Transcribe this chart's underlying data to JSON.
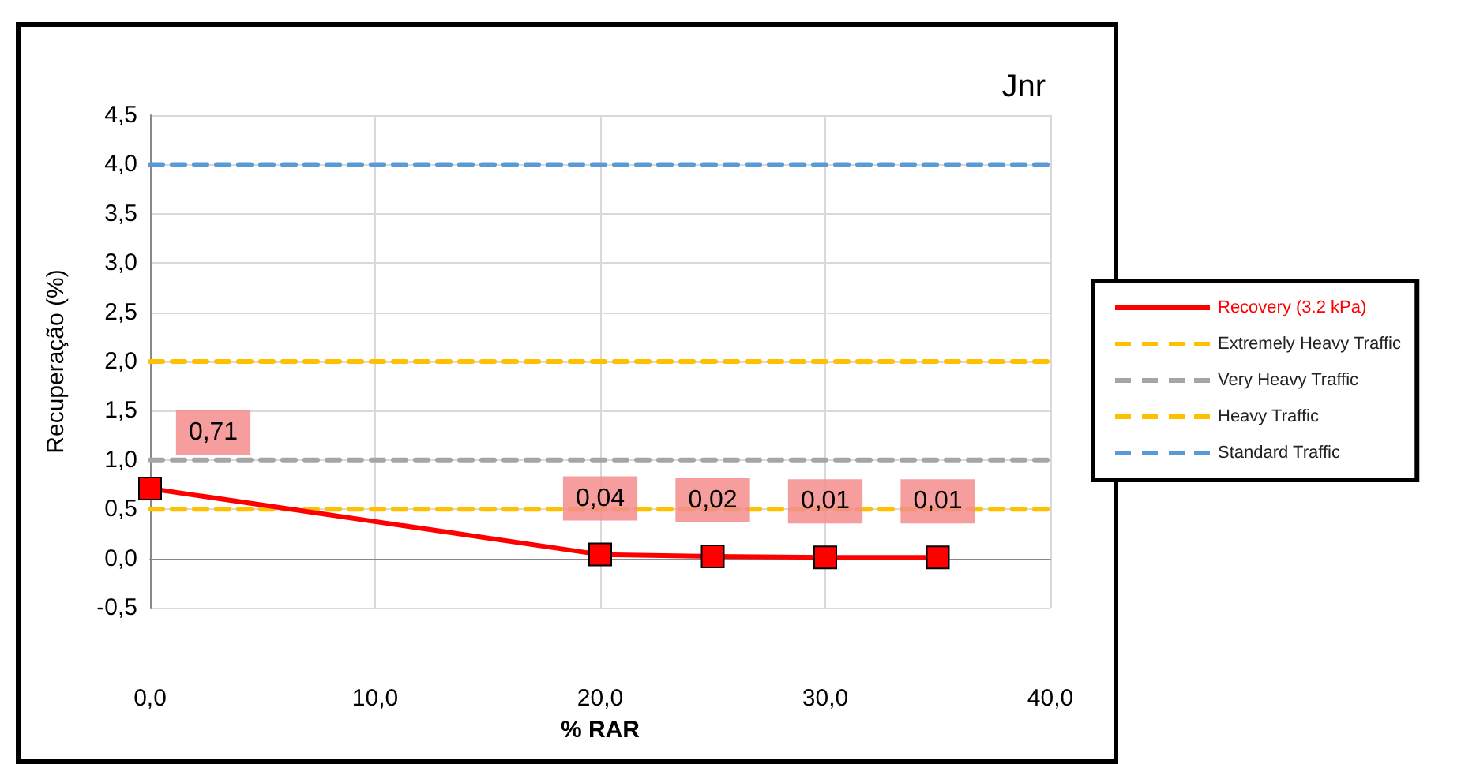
{
  "chart_data": {
    "type": "line",
    "title": "Jnr",
    "xlabel": "% RAR",
    "ylabel": "Recuperação (%)",
    "xlim": [
      0,
      40
    ],
    "xticks": [
      {
        "value": 0,
        "label": "0,0"
      },
      {
        "value": 10,
        "label": "10,0"
      },
      {
        "value": 20,
        "label": "20,0"
      },
      {
        "value": 30,
        "label": "30,0"
      },
      {
        "value": 40,
        "label": "40,0"
      }
    ],
    "ylim": [
      -0.5,
      4.5
    ],
    "yticks": [
      {
        "value": -0.5,
        "label": "-0,5"
      },
      {
        "value": 0,
        "label": "0,0"
      },
      {
        "value": 0.5,
        "label": "0,5"
      },
      {
        "value": 1,
        "label": "1,0"
      },
      {
        "value": 1.5,
        "label": "1,5"
      },
      {
        "value": 2,
        "label": "2,0"
      },
      {
        "value": 2.5,
        "label": "2,5"
      },
      {
        "value": 3,
        "label": "3,0"
      },
      {
        "value": 3.5,
        "label": "3,5"
      },
      {
        "value": 4,
        "label": "4,0"
      },
      {
        "value": 4.5,
        "label": "4,5"
      }
    ],
    "grid": true,
    "legend": "right",
    "series": [
      {
        "name": "Recovery (3.2 kPa)",
        "color": "#ff0000",
        "x": [
          0,
          20,
          25,
          30,
          35
        ],
        "values": [
          0.71,
          0.04,
          0.02,
          0.01,
          0.01
        ],
        "value_labels": [
          "0,71",
          "0,04",
          "0,02",
          "0,01",
          "0,01"
        ],
        "marker": "square",
        "line_style": "solid"
      },
      {
        "name": "Extremely Heavy Traffic",
        "color": "#ffc000",
        "x": [
          0,
          40
        ],
        "values": [
          2,
          2
        ],
        "marker": "none",
        "line_style": "dashed"
      },
      {
        "name": "Very Heavy Traffic",
        "color": "#a5a5a5",
        "x": [
          0,
          40
        ],
        "values": [
          1,
          1
        ],
        "marker": "none",
        "line_style": "dashed"
      },
      {
        "name": "Heavy Traffic",
        "color": "#ffc000",
        "x": [
          0,
          40
        ],
        "values": [
          0.5,
          0.5
        ],
        "marker": "none",
        "line_style": "dashed"
      },
      {
        "name": "Standard Traffic",
        "color": "#5b9bd5",
        "x": [
          0,
          40
        ],
        "values": [
          4,
          4
        ],
        "marker": "none",
        "line_style": "dashed"
      }
    ]
  }
}
